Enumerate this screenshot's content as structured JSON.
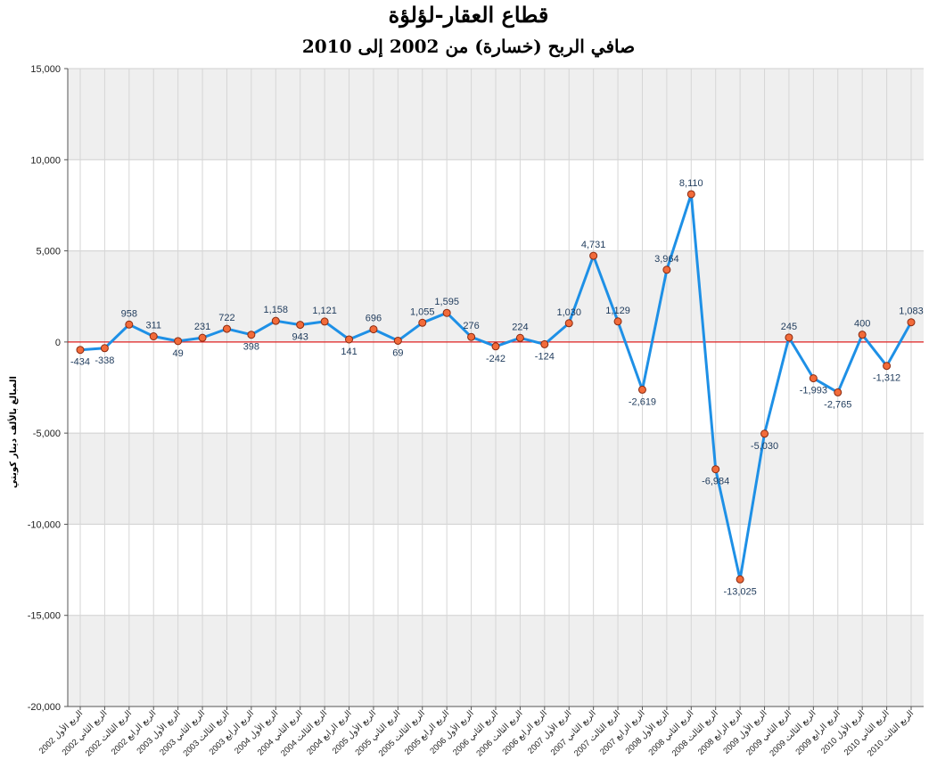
{
  "chart_data": {
    "type": "line",
    "title": "قطاع العقار-لؤلؤة",
    "subtitle": "صافي الربح (خسارة) من 2002 إلى 2010",
    "ylabel": "المبالغ بالألف دينار كويتي",
    "xlabel": "",
    "ylim": [
      -20000,
      15000
    ],
    "yticks": [
      15000,
      10000,
      5000,
      0,
      -5000,
      -10000,
      -15000,
      -20000
    ],
    "ytick_labels": [
      "15,000",
      "10,000",
      "5,000",
      "0",
      "-5,000",
      "-10,000",
      "-15,000",
      "-20,000"
    ],
    "grid": true,
    "legend": "none",
    "colors": {
      "line": "#1e90e6",
      "marker_fill": "#f26b3a",
      "marker_stroke": "#8a2a10",
      "zero_line": "#e02020",
      "band": "#efefef"
    },
    "categories": [
      "الربع الأول 2002",
      "الربع الثاني 2002",
      "الربع الثالث 2002",
      "الربع الرابع 2002",
      "الربع الأول 2003",
      "الربع الثاني 2003",
      "الربع الثالث 2003",
      "الربع الرابع 2003",
      "الربع الأول 2004",
      "الربع الثاني 2004",
      "الربع الثالث 2004",
      "الربع الرابع 2004",
      "الربع الأول 2005",
      "الربع الثاني 2005",
      "الربع الثالث 2005",
      "الربع الرابع 2005",
      "الربع الأول 2006",
      "الربع الثاني 2006",
      "الربع الثالث 2006",
      "الربع الرابع 2006",
      "الربع الأول 2007",
      "الربع الثاني 2007",
      "الربع الثالث 2007",
      "الربع الرابع 2007",
      "الربع الأول 2008",
      "الربع الثاني 2008",
      "الربع الثالث 2008",
      "الربع الرابع 2008",
      "الربع الأول 2009",
      "الربع الثاني 2009",
      "الربع الثالث 2009",
      "الربع الرابع 2009",
      "الربع الأول 2010",
      "الربع الثاني 2010",
      "الربع الثالث 2010"
    ],
    "values": [
      -434,
      -338,
      958,
      311,
      49,
      231,
      722,
      398,
      1158,
      943,
      1121,
      141,
      696,
      69,
      1055,
      1595,
      276,
      -242,
      224,
      -124,
      1030,
      4731,
      1129,
      -2619,
      3964,
      8110,
      -6984,
      -13025,
      -5030,
      245,
      -1993,
      -2765,
      400,
      -1312,
      1083
    ],
    "value_labels": [
      "-434",
      "-338",
      "958",
      "311",
      "49",
      "231",
      "722",
      "398",
      "1,158",
      "943",
      "1,121",
      "141",
      "696",
      "69",
      "1,055",
      "1,595",
      "276",
      "-242",
      "224",
      "-124",
      "1,030",
      "4,731",
      "1,129",
      "-2,619",
      "3,964",
      "8,110",
      "-6,984",
      "-13,025",
      "-5,030",
      "245",
      "-1,993",
      "-2,765",
      "400",
      "-1,312",
      "1,083"
    ]
  }
}
